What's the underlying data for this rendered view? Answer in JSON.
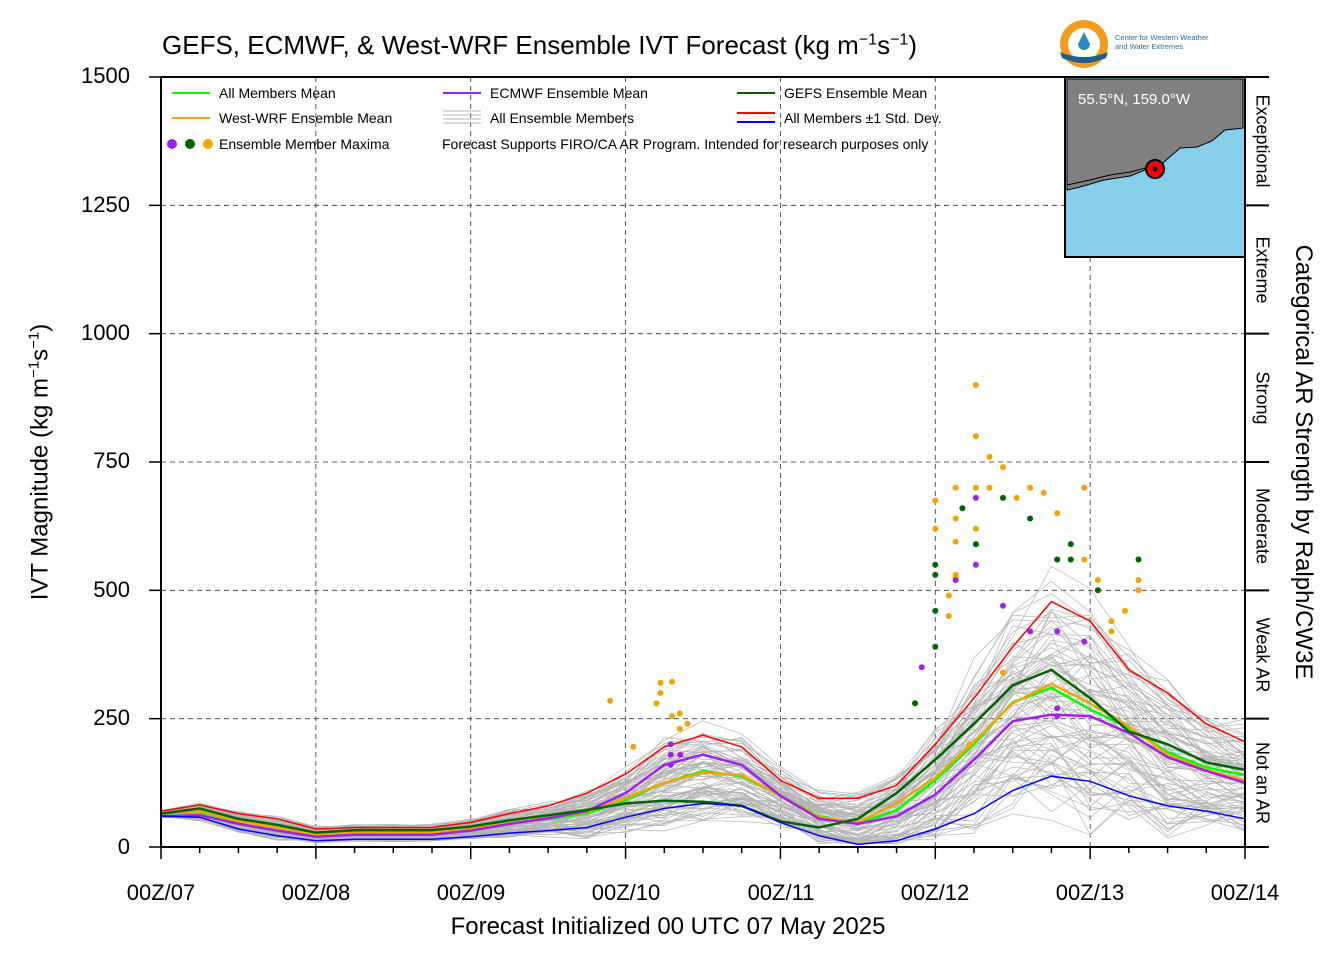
{
  "title_main": "GEFS, ECMWF, & West-WRF Ensemble IVT Forecast (kg m",
  "title_sup1": "−1",
  "title_mid": "s",
  "title_sup2": "−1",
  "title_end": ")",
  "logo": {
    "text1": "Center for Western Weather",
    "text2": "and Water Extremes"
  },
  "axes": {
    "xlabel": "Forecast Initialized 00 UTC 07 May 2025",
    "ylabel_main": "IVT Magnitude (kg m",
    "ylabel_sup1": "−1",
    "ylabel_mid": "s",
    "ylabel_sup2": "−1",
    "ylabel_end": ")",
    "right_label": "Categorical AR Strength by Ralph/CW3E",
    "ylim": [
      0,
      1500
    ],
    "xlim_hours": [
      0,
      168
    ],
    "yticks": [
      "1500",
      "1250",
      "1000",
      "750",
      "500",
      "250",
      "0"
    ],
    "xticks": [
      "00Z/07",
      "00Z/08",
      "00Z/09",
      "00Z/10",
      "00Z/11",
      "00Z/12",
      "00Z/13",
      "00Z/14"
    ]
  },
  "categories": [
    "Not an AR",
    "Weak AR",
    "Moderate",
    "Strong",
    "Extreme",
    "Exceptional"
  ],
  "legend": {
    "all_mean": "All Members Mean",
    "wrf_mean": "West-WRF Ensemble Mean",
    "maxima": "Ensemble Member Maxima",
    "ecmwf_mean": "ECMWF Ensemble Mean",
    "all_members": "All Ensemble Members",
    "note": "Forecast Supports FIRO/CA AR Program. Intended for research purposes only",
    "gefs_mean": "GEFS Ensemble Mean",
    "std": "All Members ±1 Std. Dev."
  },
  "map": {
    "label": "55.5°N, 159.0°W"
  },
  "colors": {
    "all_mean": "#00ff00",
    "wrf": "#f5a300",
    "ecmwf": "#a020f0",
    "gefs": "#006400",
    "std_upper": "#ff0000",
    "std_lower": "#0000ff",
    "members": "#b4b4b4",
    "map_water": "#87ceeb",
    "map_land": "#808080"
  },
  "chart_data": {
    "type": "line",
    "x_hours": [
      0,
      6,
      12,
      18,
      24,
      30,
      36,
      42,
      48,
      54,
      60,
      66,
      72,
      78,
      84,
      90,
      96,
      102,
      108,
      114,
      120,
      126,
      132,
      138,
      144,
      150,
      156,
      162,
      168
    ],
    "series": [
      {
        "name": "All Members Mean",
        "values": [
          65,
          68,
          50,
          38,
          24,
          28,
          28,
          28,
          36,
          47,
          55,
          65,
          92,
          125,
          148,
          138,
          100,
          60,
          45,
          72,
          130,
          200,
          282,
          310,
          268,
          232,
          185,
          155,
          140
        ]
      },
      {
        "name": "West-WRF Ensemble Mean",
        "values": [
          65,
          70,
          50,
          38,
          24,
          28,
          28,
          28,
          36,
          46,
          57,
          68,
          95,
          125,
          145,
          140,
          100,
          58,
          48,
          85,
          135,
          205,
          280,
          318,
          280,
          235,
          180,
          150,
          130
        ]
      },
      {
        "name": "ECMWF Ensemble Mean",
        "values": [
          60,
          62,
          45,
          32,
          20,
          24,
          24,
          24,
          32,
          45,
          56,
          70,
          105,
          160,
          180,
          160,
          100,
          55,
          45,
          60,
          102,
          170,
          245,
          258,
          255,
          222,
          175,
          148,
          125
        ]
      },
      {
        "name": "GEFS Ensemble Mean",
        "values": [
          65,
          75,
          55,
          43,
          28,
          33,
          33,
          33,
          40,
          52,
          62,
          72,
          85,
          90,
          88,
          80,
          50,
          38,
          55,
          105,
          170,
          240,
          315,
          345,
          290,
          225,
          200,
          165,
          150
        ]
      },
      {
        "name": "All Members ±1 Std. Dev.",
        "values": [
          70,
          82,
          65,
          55,
          35,
          38,
          38,
          38,
          48,
          65,
          80,
          105,
          142,
          195,
          218,
          195,
          130,
          95,
          95,
          120,
          200,
          290,
          390,
          478,
          440,
          345,
          300,
          240,
          205
        ]
      },
      {
        "name": "All Members ±1 Std. Dev.",
        "values": [
          60,
          58,
          35,
          22,
          12,
          15,
          15,
          15,
          20,
          27,
          32,
          38,
          58,
          75,
          85,
          80,
          48,
          22,
          5,
          12,
          35,
          65,
          110,
          138,
          128,
          100,
          80,
          70,
          55
        ]
      }
    ],
    "maxima": [
      {
        "color": "orange",
        "points": [
          [
            19,
            320
          ],
          [
            19,
            300
          ],
          [
            22,
            322
          ],
          [
            24,
            260
          ],
          [
            26,
            240
          ],
          [
            24,
            230
          ],
          [
            22,
            255
          ],
          [
            18,
            280
          ],
          [
            12,
            195
          ],
          [
            10,
            340
          ],
          [
            6,
            285
          ],
          [
            5,
            200
          ],
          [
            3,
            595
          ],
          [
            3,
            530
          ],
          [
            0,
            675
          ],
          [
            0,
            620
          ],
          [
            3,
            525
          ],
          [
            2,
            490
          ],
          [
            2,
            450
          ],
          [
            3,
            640
          ],
          [
            3,
            700
          ],
          [
            6,
            900
          ],
          [
            6,
            800
          ],
          [
            6,
            700
          ],
          [
            6,
            620
          ],
          [
            8,
            760
          ],
          [
            8,
            700
          ],
          [
            10,
            740
          ],
          [
            12,
            680
          ],
          [
            14,
            700
          ],
          [
            16,
            690
          ],
          [
            18,
            650
          ],
          [
            18,
            560
          ],
          [
            22,
            700
          ],
          [
            22,
            560
          ],
          [
            24,
            520
          ],
          [
            24,
            500
          ],
          [
            26,
            440
          ],
          [
            26,
            420
          ],
          [
            30,
            500
          ],
          [
            30,
            520
          ],
          [
            28,
            460
          ]
        ]
      },
      {
        "color": "purple",
        "points": [
          [
            24,
            180
          ],
          [
            24,
            160
          ],
          [
            24,
            200
          ],
          [
            27,
            180
          ],
          [
            -2,
            350
          ],
          [
            3,
            520
          ],
          [
            6,
            680
          ],
          [
            6,
            550
          ],
          [
            10,
            470
          ],
          [
            14,
            420
          ],
          [
            18,
            420
          ],
          [
            18,
            255
          ],
          [
            18,
            270
          ],
          [
            22,
            400
          ]
        ]
      },
      {
        "color": "green",
        "points": [
          [
            -3,
            280
          ],
          [
            0,
            390
          ],
          [
            0,
            460
          ],
          [
            0,
            550
          ],
          [
            0,
            530
          ],
          [
            4,
            660
          ],
          [
            6,
            590
          ],
          [
            10,
            680
          ],
          [
            14,
            640
          ],
          [
            18,
            560
          ],
          [
            20,
            590
          ],
          [
            20,
            560
          ],
          [
            24,
            500
          ],
          [
            30,
            560
          ]
        ]
      }
    ]
  }
}
